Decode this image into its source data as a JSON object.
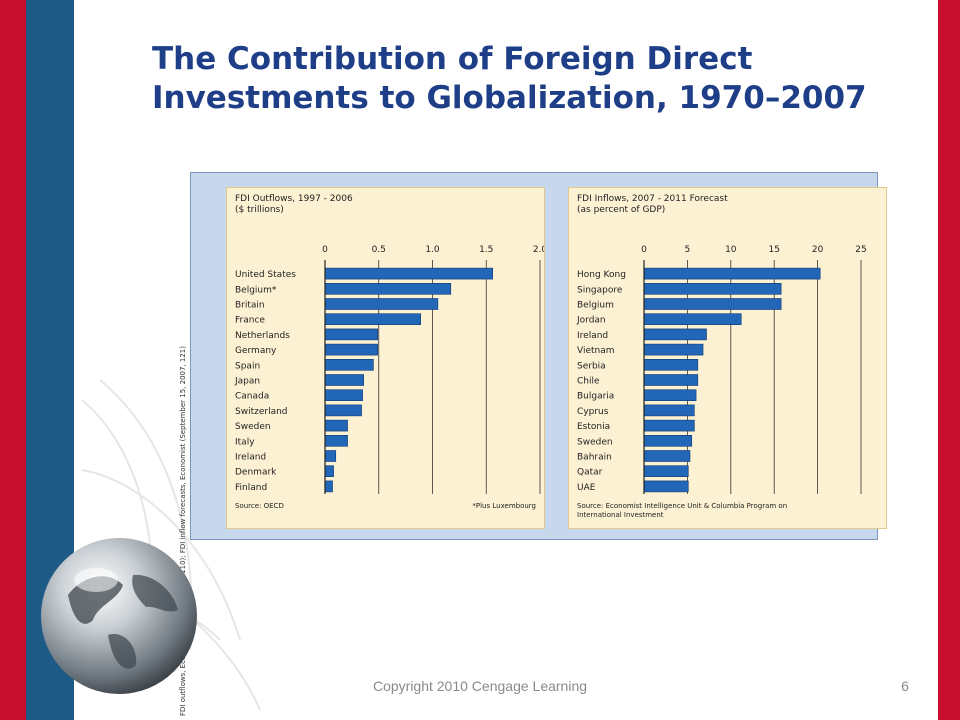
{
  "slide": {
    "title": "The Contribution of Foreign Direct Investments to Globalization, 1970–2007",
    "footer": "Copyright 2010 Cengage Learning",
    "page_number": "6",
    "side_note": "FDI outflows, Economist (June 30, 2007, 110); FDI inflow forecasts, Economist (September 15, 2007, 121)"
  },
  "colors": {
    "accent_red": "#c8102e",
    "accent_blue": "#1e5a86",
    "title": "#1e3f88",
    "bar_fill": "#2266b8",
    "chart_bg": "#fdf1d3",
    "panel_bg": "#c8d8ec"
  },
  "chart_data": [
    {
      "type": "bar",
      "orientation": "horizontal",
      "title": "FDI Outflows, 1997 - 2006",
      "subtitle": "($ trillions)",
      "categories": [
        "United States",
        "Belgium*",
        "Britain",
        "France",
        "Netherlands",
        "Germany",
        "Spain",
        "Japan",
        "Canada",
        "Switzerland",
        "Sweden",
        "Italy",
        "Ireland",
        "Denmark",
        "Finland"
      ],
      "values": [
        1.56,
        1.17,
        1.05,
        0.89,
        0.49,
        0.49,
        0.45,
        0.36,
        0.35,
        0.34,
        0.21,
        0.21,
        0.1,
        0.08,
        0.07
      ],
      "ticks": [
        "0",
        "0.5",
        "1.0",
        "1.5",
        "2.0"
      ],
      "xlim": [
        0,
        2.0
      ],
      "tick_values": [
        0,
        0.5,
        1.0,
        1.5,
        2.0
      ],
      "source": "Source: OECD",
      "note": "*Plus Luxembourg",
      "grid": true
    },
    {
      "type": "bar",
      "orientation": "horizontal",
      "title": "FDI Inflows, 2007 - 2011 Forecast",
      "subtitle": "(as percent of GDP)",
      "categories": [
        "Hong Kong",
        "Singapore",
        "Belgium",
        "Jordan",
        "Ireland",
        "Vietnam",
        "Serbia",
        "Chile",
        "Bulgaria",
        "Cyprus",
        "Estonia",
        "Sweden",
        "Bahrain",
        "Qatar",
        "UAE"
      ],
      "values": [
        20.3,
        15.8,
        15.8,
        11.2,
        7.2,
        6.8,
        6.2,
        6.2,
        6.0,
        5.8,
        5.8,
        5.5,
        5.3,
        5.1,
        5.1
      ],
      "ticks": [
        "0",
        "5",
        "10",
        "15",
        "20",
        "25"
      ],
      "xlim": [
        0,
        25
      ],
      "tick_values": [
        0,
        5,
        10,
        15,
        20,
        25
      ],
      "source": "Source: Economist Intelligence Unit & Columbia Program on International Investment",
      "grid": true
    }
  ]
}
